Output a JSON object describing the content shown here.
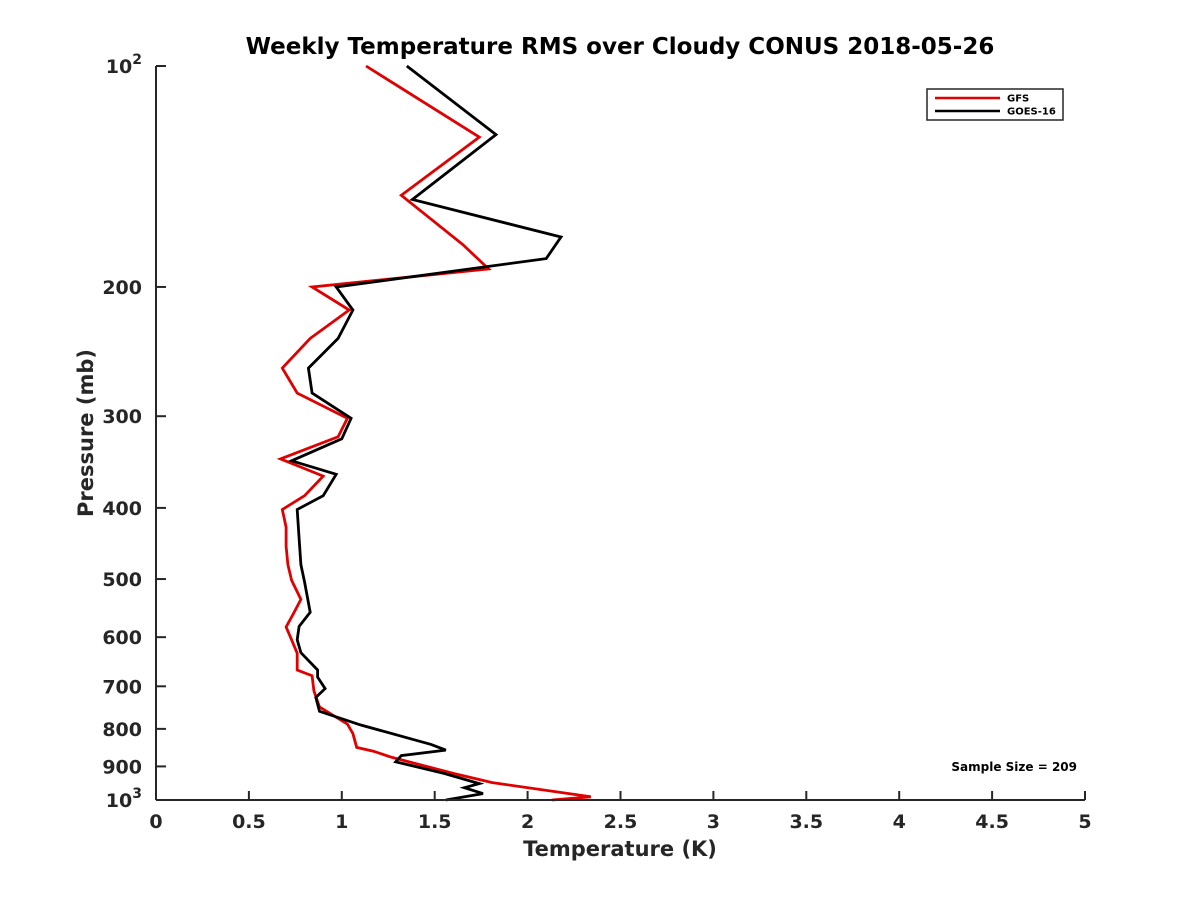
{
  "chart_data": {
    "type": "line",
    "title": "Weekly Temperature RMS over Cloudy CONUS 2018-05-26",
    "xlabel": "Temperature (K)",
    "ylabel": "Pressure (mb)",
    "xlim": [
      0,
      5
    ],
    "ylim": [
      1000,
      100
    ],
    "y_scale": "log",
    "y_reversed": true,
    "grid": false,
    "legend_position": "top-right",
    "x_ticks": [
      0,
      0.5,
      1,
      1.5,
      2,
      2.5,
      3,
      3.5,
      4,
      4.5,
      5
    ],
    "x_tick_labels": [
      "0",
      "0.5",
      "1",
      "1.5",
      "2",
      "2.5",
      "3",
      "3.5",
      "4",
      "4.5",
      "5"
    ],
    "y_ticks": [
      100,
      200,
      300,
      400,
      500,
      600,
      700,
      800,
      900,
      1000
    ],
    "y_tick_labels": [
      {
        "base": "10",
        "exp": "2"
      },
      {
        "base": "200",
        "exp": ""
      },
      {
        "base": "300",
        "exp": ""
      },
      {
        "base": "400",
        "exp": ""
      },
      {
        "base": "500",
        "exp": ""
      },
      {
        "base": "600",
        "exp": ""
      },
      {
        "base": "700",
        "exp": ""
      },
      {
        "base": "800",
        "exp": ""
      },
      {
        "base": "900",
        "exp": ""
      },
      {
        "base": "10",
        "exp": "3"
      }
    ],
    "annotation": "Sample Size = 209",
    "series": [
      {
        "name": "GFS",
        "color": "#e00000",
        "points": [
          {
            "t": 1.13,
            "p": 100
          },
          {
            "t": 1.74,
            "p": 125
          },
          {
            "t": 1.32,
            "p": 150
          },
          {
            "t": 1.65,
            "p": 175
          },
          {
            "t": 1.79,
            "p": 189
          },
          {
            "t": 0.84,
            "p": 200
          },
          {
            "t": 1.04,
            "p": 215
          },
          {
            "t": 0.83,
            "p": 235
          },
          {
            "t": 0.68,
            "p": 258
          },
          {
            "t": 0.76,
            "p": 279
          },
          {
            "t": 1.03,
            "p": 302
          },
          {
            "t": 0.98,
            "p": 320
          },
          {
            "t": 0.67,
            "p": 343
          },
          {
            "t": 0.9,
            "p": 362
          },
          {
            "t": 0.8,
            "p": 385
          },
          {
            "t": 0.68,
            "p": 402
          },
          {
            "t": 0.7,
            "p": 425
          },
          {
            "t": 0.7,
            "p": 451
          },
          {
            "t": 0.71,
            "p": 478
          },
          {
            "t": 0.73,
            "p": 502
          },
          {
            "t": 0.78,
            "p": 533
          },
          {
            "t": 0.74,
            "p": 557
          },
          {
            "t": 0.7,
            "p": 581
          },
          {
            "t": 0.73,
            "p": 605
          },
          {
            "t": 0.76,
            "p": 631
          },
          {
            "t": 0.76,
            "p": 665
          },
          {
            "t": 0.84,
            "p": 677
          },
          {
            "t": 0.85,
            "p": 710
          },
          {
            "t": 0.88,
            "p": 747
          },
          {
            "t": 1.03,
            "p": 788
          },
          {
            "t": 1.06,
            "p": 812
          },
          {
            "t": 1.08,
            "p": 848
          },
          {
            "t": 1.17,
            "p": 858
          },
          {
            "t": 1.27,
            "p": 875
          },
          {
            "t": 1.6,
            "p": 920
          },
          {
            "t": 1.81,
            "p": 947
          },
          {
            "t": 2.34,
            "p": 990
          },
          {
            "t": 2.13,
            "p": 1000
          }
        ]
      },
      {
        "name": "GOES-16",
        "color": "#000000",
        "points": [
          {
            "t": 1.35,
            "p": 100
          },
          {
            "t": 1.83,
            "p": 124
          },
          {
            "t": 1.38,
            "p": 152
          },
          {
            "t": 2.18,
            "p": 171
          },
          {
            "t": 2.1,
            "p": 183
          },
          {
            "t": 0.97,
            "p": 200
          },
          {
            "t": 1.06,
            "p": 215
          },
          {
            "t": 0.98,
            "p": 235
          },
          {
            "t": 0.82,
            "p": 258
          },
          {
            "t": 0.84,
            "p": 279
          },
          {
            "t": 1.05,
            "p": 302
          },
          {
            "t": 1.0,
            "p": 322
          },
          {
            "t": 0.73,
            "p": 345
          },
          {
            "t": 0.97,
            "p": 360
          },
          {
            "t": 0.9,
            "p": 385
          },
          {
            "t": 0.76,
            "p": 402
          },
          {
            "t": 0.77,
            "p": 440
          },
          {
            "t": 0.78,
            "p": 478
          },
          {
            "t": 0.8,
            "p": 505
          },
          {
            "t": 0.83,
            "p": 555
          },
          {
            "t": 0.77,
            "p": 580
          },
          {
            "t": 0.76,
            "p": 605
          },
          {
            "t": 0.78,
            "p": 630
          },
          {
            "t": 0.87,
            "p": 665
          },
          {
            "t": 0.87,
            "p": 680
          },
          {
            "t": 0.91,
            "p": 705
          },
          {
            "t": 0.86,
            "p": 725
          },
          {
            "t": 0.88,
            "p": 757
          },
          {
            "t": 1.1,
            "p": 790
          },
          {
            "t": 1.48,
            "p": 840
          },
          {
            "t": 1.56,
            "p": 855
          },
          {
            "t": 1.32,
            "p": 870
          },
          {
            "t": 1.29,
            "p": 887
          },
          {
            "t": 1.55,
            "p": 920
          },
          {
            "t": 1.74,
            "p": 950
          },
          {
            "t": 1.66,
            "p": 962
          },
          {
            "t": 1.76,
            "p": 980
          },
          {
            "t": 1.56,
            "p": 1000
          }
        ]
      }
    ]
  }
}
